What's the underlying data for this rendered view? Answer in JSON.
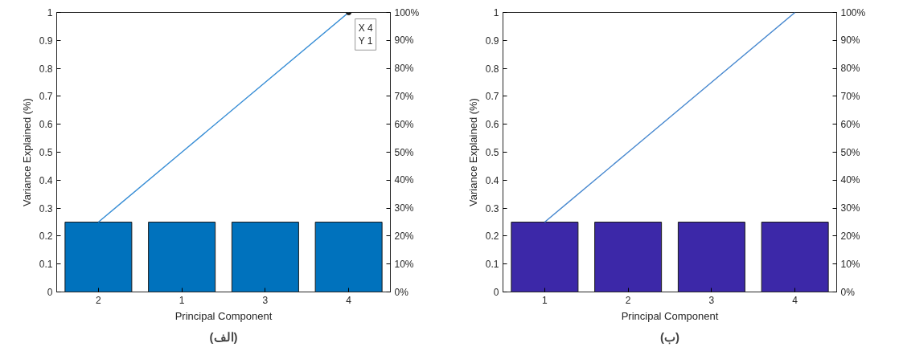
{
  "chart_data": [
    {
      "type": "bar",
      "title": "(الف)",
      "xlabel": "Principal Component",
      "ylabel": "Variance Explained (%)",
      "categories": [
        "2",
        "1",
        "3",
        "4"
      ],
      "series": [
        {
          "color": "#0072bd",
          "values": [
            0.25,
            0.25,
            0.25,
            0.25
          ]
        },
        {
          "type": "line",
          "axis": "y2",
          "color": "#3a8fd6",
          "values": [
            25,
            50,
            75,
            100
          ]
        }
      ],
      "ylim": [
        0,
        1
      ],
      "yticks": [
        0,
        0.1,
        0.2,
        0.3,
        0.4,
        0.5,
        0.6,
        0.7,
        0.8,
        0.9,
        1
      ],
      "y2lim": [
        0,
        100
      ],
      "y2ticks": [
        {
          "value": 0,
          "label": "0%"
        },
        {
          "value": 10,
          "label": "10%"
        },
        {
          "value": 20,
          "label": "20%"
        },
        {
          "value": 30,
          "label": "30%"
        },
        {
          "value": 40,
          "label": "40%"
        },
        {
          "value": 50,
          "label": "50%"
        },
        {
          "value": 60,
          "label": "60%"
        },
        {
          "value": 70,
          "label": "70%"
        },
        {
          "value": 80,
          "label": "80%"
        },
        {
          "value": 90,
          "label": "90%"
        },
        {
          "value": 100,
          "label": "100%"
        }
      ],
      "annotations": [
        {
          "text": "X 4\nY 1",
          "x": "4",
          "y": 1
        }
      ],
      "grid": false
    },
    {
      "type": "bar",
      "title": "(ب)",
      "xlabel": "Principal Component",
      "ylabel": "Variance Explained (%)",
      "categories": [
        "1",
        "2",
        "3",
        "4"
      ],
      "series": [
        {
          "color": "#3c28a8",
          "values": [
            0.25,
            0.25,
            0.25,
            0.25
          ]
        },
        {
          "type": "line",
          "axis": "y2",
          "color": "#4a8ad0",
          "values": [
            25,
            50,
            75,
            100
          ]
        }
      ],
      "ylim": [
        0,
        1
      ],
      "yticks": [
        0,
        0.1,
        0.2,
        0.3,
        0.4,
        0.5,
        0.6,
        0.7,
        0.8,
        0.9,
        1
      ],
      "y2lim": [
        0,
        100
      ],
      "y2ticks": [
        {
          "value": 0,
          "label": "0%"
        },
        {
          "value": 10,
          "label": "10%"
        },
        {
          "value": 20,
          "label": "20%"
        },
        {
          "value": 30,
          "label": "30%"
        },
        {
          "value": 40,
          "label": "40%"
        },
        {
          "value": 50,
          "label": "50%"
        },
        {
          "value": 60,
          "label": "60%"
        },
        {
          "value": 70,
          "label": "70%"
        },
        {
          "value": 80,
          "label": "80%"
        },
        {
          "value": 90,
          "label": "90%"
        },
        {
          "value": 100,
          "label": "100%"
        }
      ],
      "grid": false
    }
  ]
}
